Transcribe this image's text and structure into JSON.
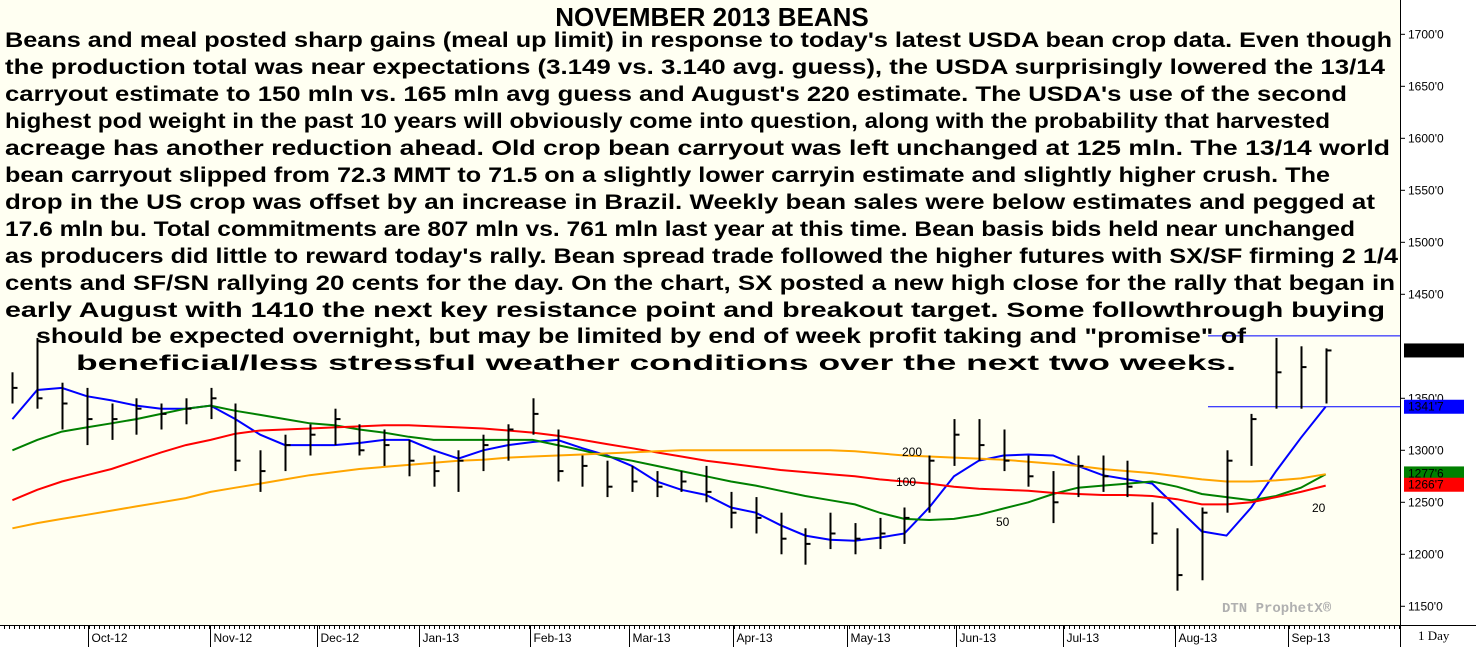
{
  "chart_data": {
    "type": "ohlc",
    "title": "NOVEMBER 2013 BEANS",
    "annotation_lines": [
      "Beans and meal posted sharp gains (meal up limit) in response to today's latest USDA bean crop data. Even though",
      "the production total was near expectations (3.149 vs. 3.140 avg. guess), the USDA surprisingly lowered the 13/14",
      "carryout estimate to 150 mln vs. 165 mln avg guess and August's 220 estimate. The USDA's use of the second",
      "highest pod weight in the past 10 years will obviously come into question, along with the probability that harvested",
      "acreage has another reduction ahead. Old crop bean carryout was left unchanged at 125 mln. The 13/14 world",
      "bean carryout slipped from 72.3 MMT to 71.5 on a slightly lower carryin estimate and slightly higher crush. The",
      "drop in the US crop was offset by an increase in Brazil. Weekly bean sales were below estimates and pegged at",
      "17.6 mln bu. Total commitments are 807 mln vs. 761 mln last year at this time. Bean basis bids held near unchanged",
      "as producers did little to reward today's rally. Bean spread trade followed the higher futures with SX/SF firming 2 1/4",
      "cents and SF/SN rallying 20 cents for the day. On the chart, SX posted a new high close for the rally that began in",
      "early August with 1410 the next key resistance point and breakout target. Some followthrough buying",
      "should be expected overnight, but may be limited by end of week profit taking and \"promise\" of",
      "beneficial/less stressful weather conditions over the next two weeks."
    ],
    "watermark": "DTN ProphetX®",
    "interval": "1 Day",
    "xlim": [
      -0.5,
      56
    ],
    "xticks": [
      {
        "value": 3.05,
        "label": "Oct-12"
      },
      {
        "value": 7.97,
        "label": "Nov-12"
      },
      {
        "value": 12.3,
        "label": "Dec-12"
      },
      {
        "value": 16.4,
        "label": "Jan-13"
      },
      {
        "value": 20.9,
        "label": "Feb-13"
      },
      {
        "value": 24.9,
        "label": "Mar-13"
      },
      {
        "value": 29.1,
        "label": "Apr-13"
      },
      {
        "value": 33.7,
        "label": "May-13"
      },
      {
        "value": 38.1,
        "label": "Jun-13"
      },
      {
        "value": 42.4,
        "label": "Jul-13"
      },
      {
        "value": 46.9,
        "label": "Aug-13"
      },
      {
        "value": 51.5,
        "label": "Sep-13"
      }
    ],
    "ylim": [
      1132,
      1733
    ],
    "yticks": [
      {
        "value": 1150,
        "label": "1150'0"
      },
      {
        "value": 1200,
        "label": "1200'0"
      },
      {
        "value": 1250,
        "label": "1250'0"
      },
      {
        "value": 1300,
        "label": "1300'0"
      },
      {
        "value": 1350,
        "label": "1350'0"
      },
      {
        "value": 1450,
        "label": "1450'0"
      },
      {
        "value": 1500,
        "label": "1500'0"
      },
      {
        "value": 1550,
        "label": "1550'0"
      },
      {
        "value": 1600,
        "label": "1600'0"
      },
      {
        "value": 1650,
        "label": "1650'0"
      },
      {
        "value": 1700,
        "label": "1700'0"
      }
    ],
    "bar_color": "#000000",
    "high": [
      1375,
      1408,
      1365,
      1360,
      1345,
      1350,
      1345,
      1350,
      1360,
      1345,
      1300,
      1315,
      1325,
      1340,
      1325,
      1320,
      1310,
      1295,
      1300,
      1315,
      1325,
      1350,
      1320,
      1295,
      1290,
      1285,
      1280,
      1280,
      1285,
      1260,
      1255,
      1240,
      1225,
      1240,
      1230,
      1235,
      1245,
      1295,
      1330,
      1330,
      1320,
      1295,
      1280,
      1295,
      1295,
      1290,
      1250,
      1225,
      1245,
      1300,
      1335,
      1408,
      1400,
      1398
    ],
    "low": [
      1345,
      1340,
      1320,
      1305,
      1310,
      1315,
      1320,
      1325,
      1330,
      1280,
      1260,
      1280,
      1295,
      1305,
      1295,
      1285,
      1275,
      1265,
      1260,
      1280,
      1290,
      1315,
      1270,
      1265,
      1255,
      1260,
      1255,
      1260,
      1250,
      1225,
      1220,
      1200,
      1190,
      1205,
      1200,
      1205,
      1210,
      1240,
      1285,
      1290,
      1280,
      1265,
      1230,
      1255,
      1260,
      1255,
      1210,
      1165,
      1175,
      1240,
      1285,
      1340,
      1340,
      1345
    ],
    "close": [
      1360,
      1350,
      1345,
      1330,
      1330,
      1340,
      1335,
      1340,
      1350,
      1290,
      1280,
      1305,
      1315,
      1330,
      1300,
      1305,
      1290,
      1280,
      1290,
      1305,
      1320,
      1335,
      1280,
      1285,
      1265,
      1270,
      1265,
      1270,
      1260,
      1240,
      1235,
      1215,
      1210,
      1220,
      1215,
      1220,
      1235,
      1290,
      1315,
      1305,
      1290,
      1275,
      1250,
      1285,
      1275,
      1265,
      1220,
      1180,
      1240,
      1290,
      1330,
      1375,
      1380,
      1396
    ],
    "series": [
      {
        "name": "20",
        "color": "#0000ff",
        "values": [
          1330,
          1358,
          1360,
          1352,
          1348,
          1343,
          1340,
          1340,
          1343,
          1330,
          1315,
          1305,
          1305,
          1305,
          1307,
          1310,
          1310,
          1300,
          1292,
          1300,
          1305,
          1308,
          1310,
          1302,
          1295,
          1285,
          1270,
          1262,
          1257,
          1245,
          1240,
          1228,
          1218,
          1214,
          1213,
          1216,
          1220,
          1245,
          1275,
          1290,
          1295,
          1296,
          1295,
          1285,
          1276,
          1272,
          1268,
          1245,
          1222,
          1218,
          1245,
          1280,
          1312,
          1342
        ]
      },
      {
        "name": "50",
        "color": "#008000",
        "values": [
          1300,
          1310,
          1318,
          1322,
          1326,
          1330,
          1335,
          1340,
          1343,
          1338,
          1334,
          1330,
          1326,
          1324,
          1320,
          1317,
          1313,
          1310,
          1310,
          1310,
          1310,
          1310,
          1305,
          1300,
          1294,
          1290,
          1285,
          1280,
          1275,
          1270,
          1266,
          1261,
          1256,
          1252,
          1248,
          1240,
          1234,
          1233,
          1234,
          1238,
          1244,
          1250,
          1258,
          1264,
          1266,
          1268,
          1270,
          1265,
          1258,
          1255,
          1252,
          1256,
          1264,
          1277
        ]
      },
      {
        "name": "100",
        "color": "#ff0000",
        "values": [
          1252,
          1262,
          1270,
          1276,
          1282,
          1290,
          1298,
          1305,
          1310,
          1316,
          1319,
          1320,
          1321,
          1322,
          1323,
          1324,
          1324,
          1323,
          1322,
          1321,
          1319,
          1317,
          1314,
          1310,
          1306,
          1302,
          1298,
          1294,
          1290,
          1287,
          1284,
          1281,
          1279,
          1277,
          1275,
          1272,
          1270,
          1268,
          1265,
          1263,
          1262,
          1261,
          1259,
          1258,
          1257,
          1257,
          1256,
          1253,
          1248,
          1248,
          1250,
          1255,
          1260,
          1266
        ]
      },
      {
        "name": "200",
        "color": "#ffa500",
        "values": [
          1225,
          1230,
          1234,
          1238,
          1242,
          1246,
          1250,
          1254,
          1260,
          1264,
          1268,
          1272,
          1276,
          1279,
          1282,
          1284,
          1286,
          1288,
          1290,
          1291,
          1293,
          1294,
          1295,
          1296,
          1297,
          1298,
          1299,
          1300,
          1300,
          1300,
          1300,
          1300,
          1300,
          1300,
          1299,
          1297,
          1295,
          1294,
          1293,
          1292,
          1291,
          1289,
          1287,
          1285,
          1282,
          1280,
          1278,
          1275,
          1272,
          1270,
          1270,
          1271,
          1273,
          1277
        ]
      }
    ],
    "hlines": [
      1410,
      1341.875
    ],
    "hline_color": "#0000ff",
    "price_labels": [
      {
        "value": 1396,
        "label": "1396'0",
        "color": "#000000"
      },
      {
        "value": 1341.875,
        "label": "1341'7",
        "color": "#0000ff"
      },
      {
        "value": 1277.75,
        "label": "1277'6",
        "color": "#008000"
      },
      {
        "value": 1266.875,
        "label": "1266'7",
        "color": "#ff0000"
      }
    ]
  }
}
